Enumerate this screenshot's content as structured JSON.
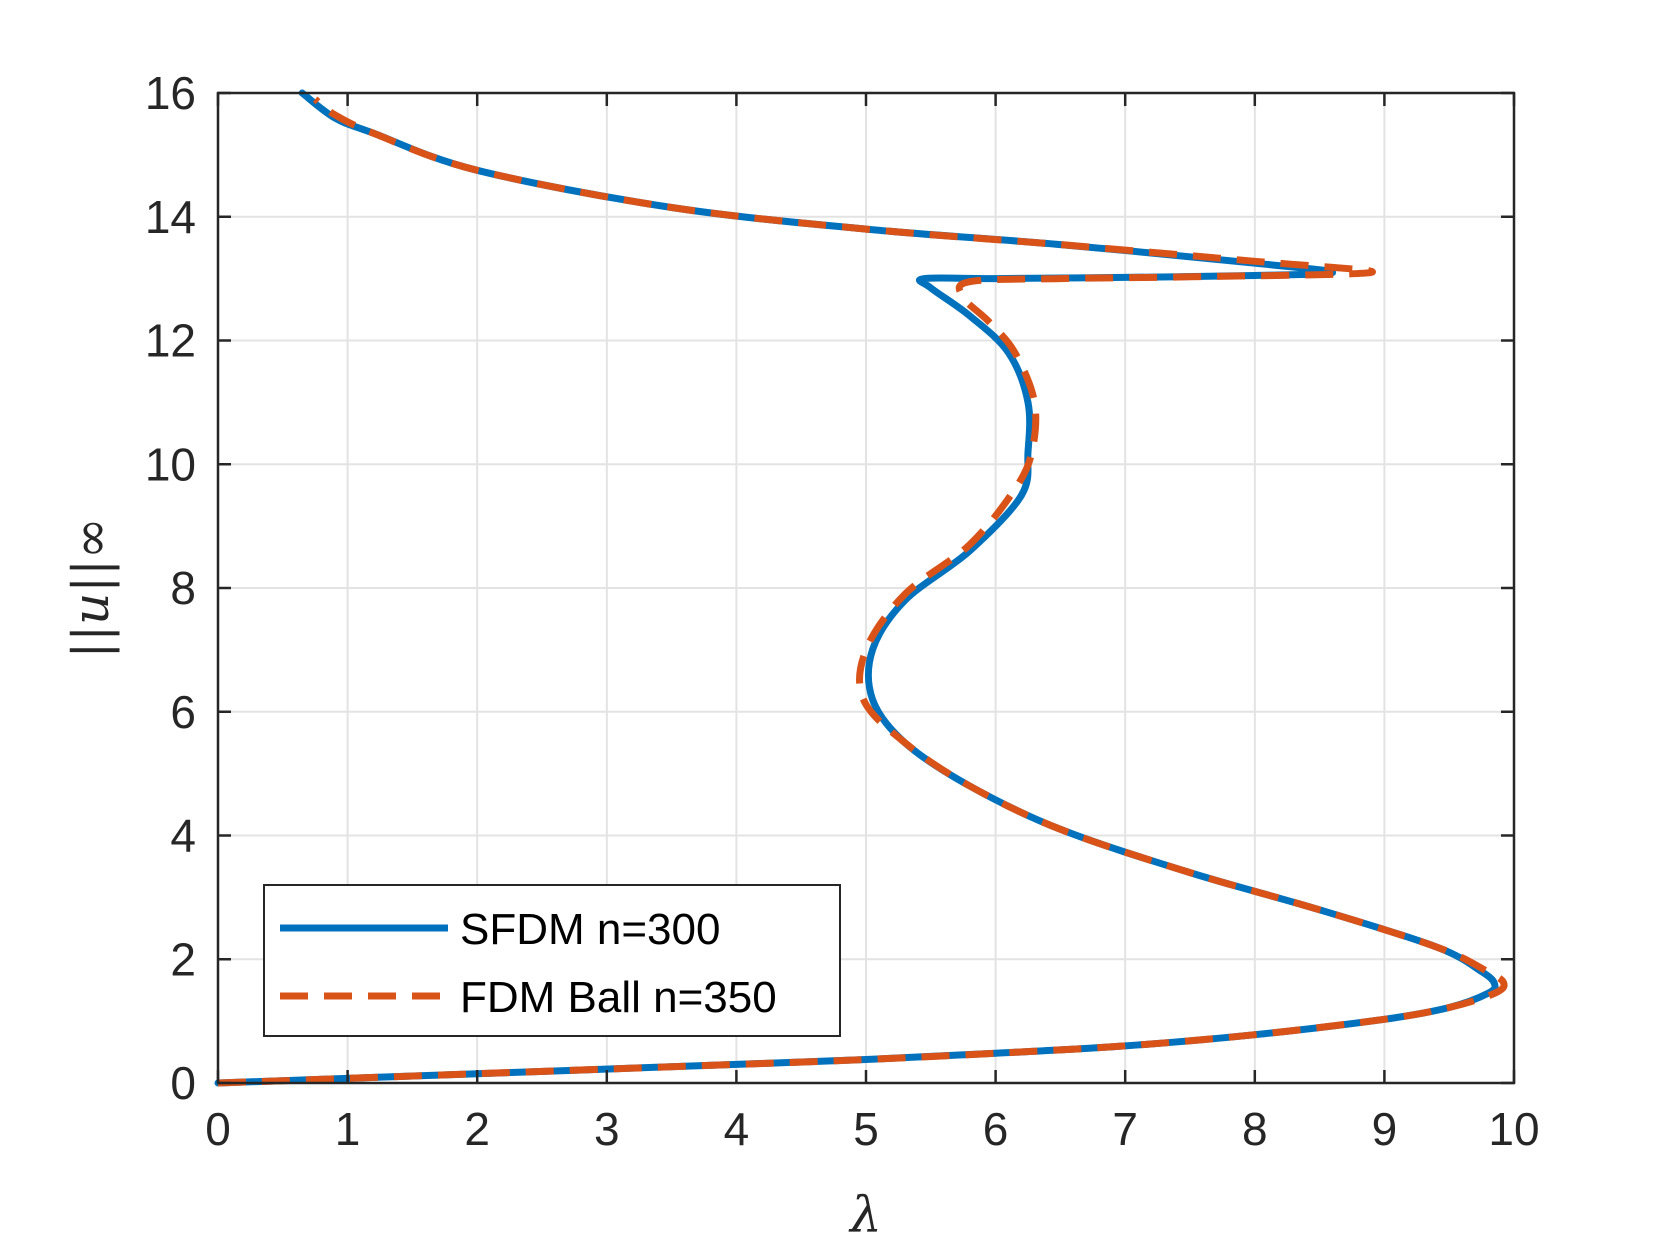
{
  "chart_data": {
    "type": "line",
    "title": "",
    "xlabel": "λ",
    "ylabel": "||u||∞",
    "xlim": [
      0,
      10
    ],
    "ylim": [
      0,
      16
    ],
    "xticks": [
      0,
      1,
      2,
      3,
      4,
      5,
      6,
      7,
      8,
      9,
      10
    ],
    "yticks": [
      0,
      2,
      4,
      6,
      8,
      10,
      12,
      14,
      16
    ],
    "grid": true,
    "legend_position": "bottom-left",
    "series": [
      {
        "name": "SFDM n=300",
        "color": "#0072BD",
        "style": "solid",
        "points": [
          [
            0,
            0
          ],
          [
            2,
            0.15
          ],
          [
            4,
            0.3
          ],
          [
            5,
            0.38
          ],
          [
            6,
            0.48
          ],
          [
            7,
            0.6
          ],
          [
            8,
            0.78
          ],
          [
            9,
            1.03
          ],
          [
            9.5,
            1.22
          ],
          [
            9.8,
            1.45
          ],
          [
            9.85,
            1.6
          ],
          [
            9.75,
            1.8
          ],
          [
            9.4,
            2.2
          ],
          [
            8.5,
            2.8
          ],
          [
            7.5,
            3.4
          ],
          [
            6.5,
            4.1
          ],
          [
            5.8,
            4.8
          ],
          [
            5.3,
            5.5
          ],
          [
            5.05,
            6.2
          ],
          [
            5.05,
            7.0
          ],
          [
            5.3,
            7.8
          ],
          [
            5.8,
            8.6
          ],
          [
            6.2,
            9.5
          ],
          [
            6.25,
            10.2
          ],
          [
            6.25,
            11.0
          ],
          [
            6.1,
            11.8
          ],
          [
            5.8,
            12.4
          ],
          [
            5.5,
            12.85
          ],
          [
            5.45,
            13.0
          ],
          [
            6.0,
            13.0
          ],
          [
            7.0,
            13.02
          ],
          [
            8.0,
            13.05
          ],
          [
            8.6,
            13.1
          ],
          [
            8.0,
            13.25
          ],
          [
            6.5,
            13.55
          ],
          [
            5.0,
            13.8
          ],
          [
            3.5,
            14.15
          ],
          [
            2.0,
            14.75
          ],
          [
            1.2,
            15.35
          ],
          [
            0.9,
            15.6
          ],
          [
            0.65,
            16.0
          ]
        ]
      },
      {
        "name": "FDM Ball n=350",
        "color": "#D95319",
        "style": "dashed",
        "points": [
          [
            0,
            0
          ],
          [
            2,
            0.15
          ],
          [
            4,
            0.3
          ],
          [
            5,
            0.38
          ],
          [
            6,
            0.48
          ],
          [
            7,
            0.6
          ],
          [
            8,
            0.78
          ],
          [
            9,
            1.03
          ],
          [
            9.5,
            1.22
          ],
          [
            9.85,
            1.45
          ],
          [
            9.92,
            1.62
          ],
          [
            9.78,
            1.82
          ],
          [
            9.4,
            2.2
          ],
          [
            8.5,
            2.8
          ],
          [
            7.5,
            3.4
          ],
          [
            6.5,
            4.1
          ],
          [
            5.8,
            4.8
          ],
          [
            5.3,
            5.5
          ],
          [
            4.98,
            6.2
          ],
          [
            5.0,
            7.0
          ],
          [
            5.3,
            7.9
          ],
          [
            5.8,
            8.7
          ],
          [
            6.15,
            9.6
          ],
          [
            6.28,
            10.2
          ],
          [
            6.3,
            11.0
          ],
          [
            6.15,
            11.8
          ],
          [
            5.95,
            12.3
          ],
          [
            5.75,
            12.7
          ],
          [
            5.8,
            12.95
          ],
          [
            6.5,
            13.0
          ],
          [
            7.5,
            13.03
          ],
          [
            8.9,
            13.1
          ],
          [
            8.0,
            13.28
          ],
          [
            6.5,
            13.55
          ],
          [
            5.0,
            13.8
          ],
          [
            3.5,
            14.15
          ],
          [
            2.0,
            14.75
          ],
          [
            1.2,
            15.35
          ],
          [
            0.9,
            15.65
          ],
          [
            0.75,
            15.9
          ]
        ]
      }
    ]
  }
}
